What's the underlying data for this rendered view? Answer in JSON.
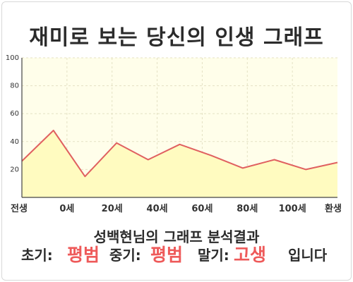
{
  "title": "재미로 보는 당신의 인생 그래프",
  "subtitle": "성백현님의 그래프 분석결과",
  "verdict": {
    "early_label": "초기:",
    "early_value": "평범",
    "mid_label": "중기:",
    "mid_value": "평범",
    "late_label": "말기:",
    "late_value": "고생",
    "ending": "입니다"
  },
  "colors": {
    "line": "#e06060",
    "fill": "#fffbc0",
    "plot_bg": "#fffeea",
    "highlight": "#ee5a5a"
  },
  "chart_data": {
    "type": "area",
    "x_tick_labels": [
      "전생",
      "0세",
      "20세",
      "40세",
      "60세",
      "80세",
      "100세",
      "환생"
    ],
    "y_ticks": [
      20,
      40,
      60,
      80,
      100
    ],
    "ylim": [
      0,
      100
    ],
    "grid": true,
    "series": [
      {
        "values": [
          26,
          48,
          15,
          39,
          27,
          38,
          30,
          21,
          27,
          20,
          25
        ]
      }
    ]
  }
}
